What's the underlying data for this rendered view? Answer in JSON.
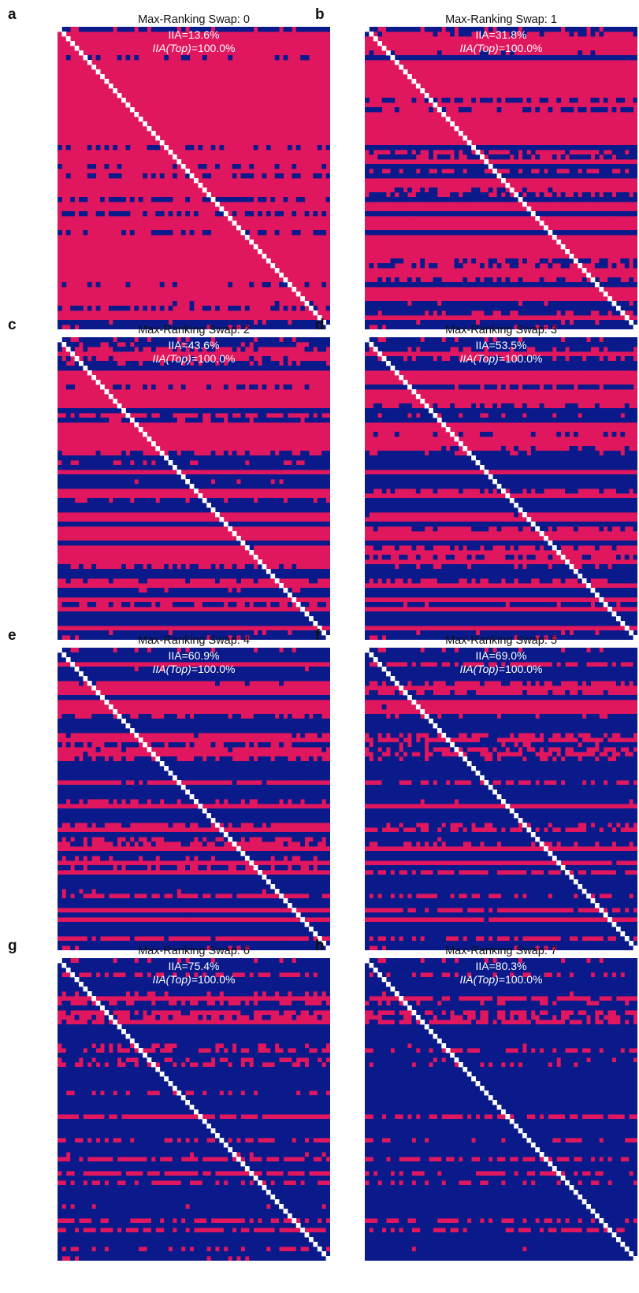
{
  "colors": {
    "match": "#0a1a8a",
    "mismatch": "#e0165e",
    "diagonal": "#ffffff"
  },
  "chart_data": [
    {
      "type": "heatmap",
      "letter": "a",
      "title": "Max-Ranking Swap: 0",
      "swap": 0,
      "iia_text": "IIA=13.6%",
      "iia": 13.6,
      "iia_top_prefix": "IIA",
      "iia_top_italic": "(Top)",
      "iia_top_value": "=100.0%",
      "iia_top": 100.0,
      "grid_size": 64
    },
    {
      "type": "heatmap",
      "letter": "b",
      "title": "Max-Ranking Swap: 1",
      "swap": 1,
      "iia_text": "IIA=31.8%",
      "iia": 31.8,
      "iia_top_prefix": "IIA",
      "iia_top_italic": "(Top)",
      "iia_top_value": "=100.0%",
      "iia_top": 100.0,
      "grid_size": 64
    },
    {
      "type": "heatmap",
      "letter": "c",
      "title": "Max-Ranking Swap: 2",
      "swap": 2,
      "iia_text": "IIA=43.6%",
      "iia": 43.6,
      "iia_top_prefix": "IIA",
      "iia_top_italic": "(Top)",
      "iia_top_value": "=100.0%",
      "iia_top": 100.0,
      "grid_size": 64
    },
    {
      "type": "heatmap",
      "letter": "d",
      "title": "Max-Ranking Swap: 3",
      "swap": 3,
      "iia_text": "IIA=53.5%",
      "iia": 53.5,
      "iia_top_prefix": "IIA",
      "iia_top_italic": "(Top)",
      "iia_top_value": "=100.0%",
      "iia_top": 100.0,
      "grid_size": 64
    },
    {
      "type": "heatmap",
      "letter": "e",
      "title": "Max-Ranking Swap: 4",
      "swap": 4,
      "iia_text": "IIA=60.9%",
      "iia": 60.9,
      "iia_top_prefix": "IIA",
      "iia_top_italic": "(Top)",
      "iia_top_value": "=100.0%",
      "iia_top": 100.0,
      "grid_size": 64
    },
    {
      "type": "heatmap",
      "letter": "f",
      "title": "Max-Ranking Swap: 5",
      "swap": 5,
      "iia_text": "IIA=69.0%",
      "iia": 69.0,
      "iia_top_prefix": "IIA",
      "iia_top_italic": "(Top)",
      "iia_top_value": "=100.0%",
      "iia_top": 100.0,
      "grid_size": 64
    },
    {
      "type": "heatmap",
      "letter": "g",
      "title": "Max-Ranking Swap: 6",
      "swap": 6,
      "iia_text": "IIA=75.4%",
      "iia": 75.4,
      "iia_top_prefix": "IIA",
      "iia_top_italic": "(Top)",
      "iia_top_value": "=100.0%",
      "iia_top": 100.0,
      "grid_size": 64
    },
    {
      "type": "heatmap",
      "letter": "h",
      "title": "Max-Ranking Swap: 7",
      "swap": 7,
      "iia_text": "IIA=80.3%",
      "iia": 80.3,
      "iia_top_prefix": "IIA",
      "iia_top_italic": "(Top)",
      "iia_top_value": "=100.0%",
      "iia_top": 100.0,
      "grid_size": 64
    }
  ]
}
